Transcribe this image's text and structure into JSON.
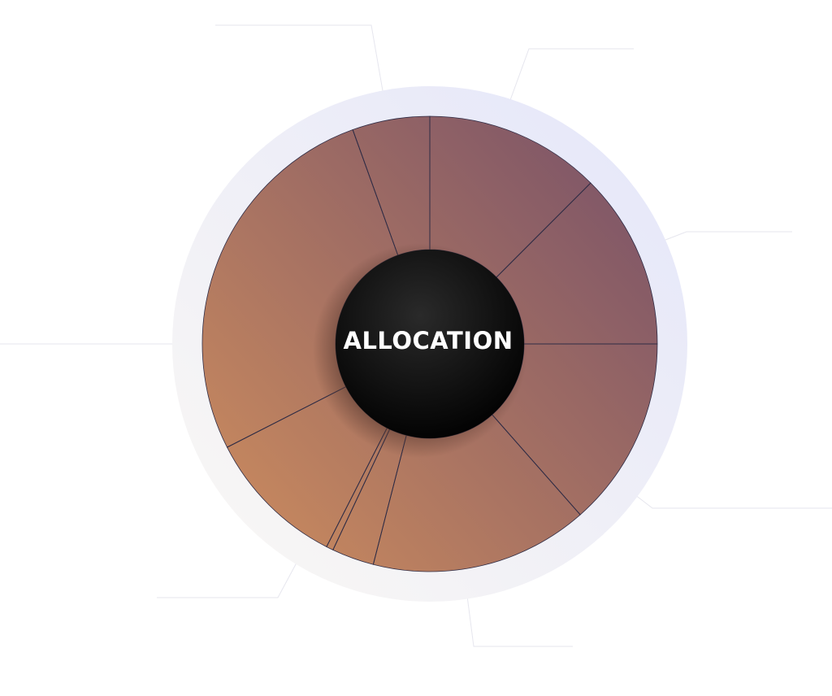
{
  "chart_data": {
    "type": "pie",
    "variant": "donut",
    "title": "ALLOCATION",
    "slices": [
      {
        "value": 12.5
      },
      {
        "value": 12.5
      },
      {
        "value": 13.5
      },
      {
        "value": 15.5
      },
      {
        "value": 3.0
      },
      {
        "value": 0.5
      },
      {
        "value": 10.0
      },
      {
        "value": 27.0
      },
      {
        "value": 5.5
      }
    ],
    "colors": {
      "gradient_start": "#c8895e",
      "gradient_end": "#7c5468",
      "ring_start": "#faf8f4",
      "ring_end": "#e4e6fa",
      "separator": "#2f2c45",
      "callout": "#e6e6ee",
      "hub": "#111111"
    }
  }
}
